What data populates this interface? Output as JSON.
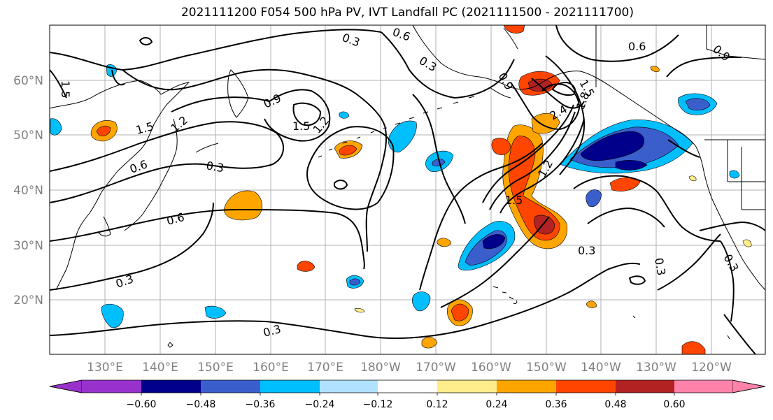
{
  "title": "2021111200 F054 500 hPa PV, IVT Landfall PC (2021111500 - 2021111700)",
  "lat_labels": [
    "60°N",
    "50°N",
    "40°N",
    "30°N",
    "20°N"
  ],
  "lon_labels": [
    "130°E",
    "140°E",
    "150°E",
    "160°E",
    "170°E",
    "180°W",
    "170°W",
    "160°W",
    "150°W",
    "140°W",
    "130°W",
    "120°W"
  ],
  "colorbar": {
    "colors": [
      "#9932cc",
      "#00008b",
      "#3a5fcd",
      "#00bfff",
      "#b0e2ff",
      "#ffffff",
      "#ffec8b",
      "#ffa500",
      "#ff4500",
      "#b22222",
      "#ff82ab"
    ],
    "tick_labels": [
      "−0.60",
      "−0.48",
      "−0.36",
      "−0.24",
      "−0.12",
      "0.12",
      "0.24",
      "0.36",
      "0.48",
      "0.60"
    ]
  },
  "contour_labels": [
    "0.3",
    "0.6",
    "0.9",
    "1.2",
    "1.5",
    "1.8",
    "2.4"
  ],
  "colors": {
    "coast": "#000000",
    "grid": "#b0b0b0",
    "contour": "#000000"
  }
}
